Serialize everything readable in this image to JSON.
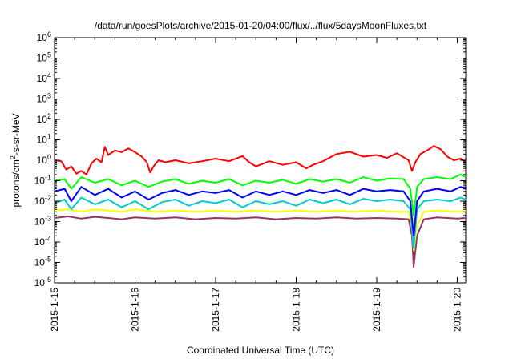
{
  "chart_data": {
    "type": "line",
    "title": "/data/run/goesPlots/archive/2015-01-20/04:00/flux/../flux/5daysMoonFluxes.txt",
    "xlabel": "Coordinated Universal Time (UTC)",
    "ylabel": "protons/cm2-s-sr-MeV",
    "ylabel_parts": {
      "pre": "protons/cm",
      "sup": "2",
      "post": "-s-sr-MeV"
    },
    "yscale": "log",
    "ylim": [
      1e-06,
      1000000.0
    ],
    "xlim": [
      "2015-01-15",
      "2015-01-20T02:30"
    ],
    "x_ticks": [
      "2015-1-15",
      "2015-1-16",
      "2015-1-17",
      "2015-1-18",
      "2015-1-19",
      "2015-1-20"
    ],
    "y_ticks": [
      {
        "base": "10",
        "exp": "-6"
      },
      {
        "base": "10",
        "exp": "-5"
      },
      {
        "base": "10",
        "exp": "-4"
      },
      {
        "base": "10",
        "exp": "-3"
      },
      {
        "base": "10",
        "exp": "-2"
      },
      {
        "base": "10",
        "exp": "-1"
      },
      {
        "base": "10",
        "exp": "0"
      },
      {
        "base": "10",
        "exp": "1"
      },
      {
        "base": "10",
        "exp": "2"
      },
      {
        "base": "10",
        "exp": "3"
      },
      {
        "base": "10",
        "exp": "4"
      },
      {
        "base": "10",
        "exp": "5"
      },
      {
        "base": "10",
        "exp": "6"
      }
    ],
    "grid": false,
    "series": [
      {
        "color": "#ff0000",
        "points": [
          [
            "2015-01-15T00:00",
            1.0
          ],
          [
            "2015-01-15T02:00",
            0.9
          ],
          [
            "2015-01-15T03:30",
            0.35
          ],
          [
            "2015-01-15T05:00",
            0.5
          ],
          [
            "2015-01-15T06:30",
            0.22
          ],
          [
            "2015-01-15T08:00",
            0.3
          ],
          [
            "2015-01-15T09:30",
            0.2
          ],
          [
            "2015-01-15T11:00",
            0.7
          ],
          [
            "2015-01-15T12:30",
            1.2
          ],
          [
            "2015-01-15T14:00",
            0.8
          ],
          [
            "2015-01-15T15:00",
            4.5
          ],
          [
            "2015-01-15T16:00",
            1.8
          ],
          [
            "2015-01-15T18:00",
            3.0
          ],
          [
            "2015-01-15T20:00",
            2.5
          ],
          [
            "2015-01-15T22:00",
            3.8
          ],
          [
            "2015-01-16T00:00",
            2.5
          ],
          [
            "2015-01-16T02:00",
            1.5
          ],
          [
            "2015-01-16T03:30",
            0.8
          ],
          [
            "2015-01-16T04:30",
            0.25
          ],
          [
            "2015-01-16T05:30",
            0.5
          ],
          [
            "2015-01-16T07:00",
            1.0
          ],
          [
            "2015-01-16T09:00",
            0.8
          ],
          [
            "2015-01-16T12:00",
            1.0
          ],
          [
            "2015-01-16T16:00",
            0.7
          ],
          [
            "2015-01-16T20:00",
            0.9
          ],
          [
            "2015-01-17T00:00",
            1.2
          ],
          [
            "2015-01-17T04:00",
            0.9
          ],
          [
            "2015-01-17T08:00",
            1.6
          ],
          [
            "2015-01-17T10:00",
            0.8
          ],
          [
            "2015-01-17T12:00",
            0.5
          ],
          [
            "2015-01-17T16:00",
            0.9
          ],
          [
            "2015-01-17T20:00",
            0.6
          ],
          [
            "2015-01-18T00:00",
            0.8
          ],
          [
            "2015-01-18T03:00",
            0.4
          ],
          [
            "2015-01-18T05:00",
            0.6
          ],
          [
            "2015-01-18T08:00",
            0.9
          ],
          [
            "2015-01-18T12:00",
            2.0
          ],
          [
            "2015-01-18T16:00",
            2.6
          ],
          [
            "2015-01-18T20:00",
            1.5
          ],
          [
            "2015-01-19T00:00",
            1.8
          ],
          [
            "2015-01-19T03:00",
            1.3
          ],
          [
            "2015-01-19T06:00",
            2.2
          ],
          [
            "2015-01-19T08:00",
            1.4
          ],
          [
            "2015-01-19T09:30",
            1.0
          ],
          [
            "2015-01-19T10:30",
            0.3
          ],
          [
            "2015-01-19T11:30",
            0.8
          ],
          [
            "2015-01-19T13:00",
            2.0
          ],
          [
            "2015-01-19T15:00",
            3.0
          ],
          [
            "2015-01-19T17:00",
            5.0
          ],
          [
            "2015-01-19T19:00",
            3.5
          ],
          [
            "2015-01-19T21:00",
            1.5
          ],
          [
            "2015-01-19T23:00",
            1.0
          ],
          [
            "2015-01-20T01:00",
            1.2
          ],
          [
            "2015-01-20T02:30",
            0.8
          ]
        ]
      },
      {
        "color": "#00ff00",
        "points": [
          [
            "2015-01-15T00:00",
            0.1
          ],
          [
            "2015-01-15T03:00",
            0.12
          ],
          [
            "2015-01-15T05:00",
            0.04
          ],
          [
            "2015-01-15T08:00",
            0.15
          ],
          [
            "2015-01-15T12:00",
            0.08
          ],
          [
            "2015-01-15T16:00",
            0.12
          ],
          [
            "2015-01-15T20:00",
            0.06
          ],
          [
            "2015-01-16T00:00",
            0.1
          ],
          [
            "2015-01-16T04:00",
            0.05
          ],
          [
            "2015-01-16T08:00",
            0.09
          ],
          [
            "2015-01-16T12:00",
            0.12
          ],
          [
            "2015-01-16T16:00",
            0.07
          ],
          [
            "2015-01-16T20:00",
            0.1
          ],
          [
            "2015-01-17T00:00",
            0.08
          ],
          [
            "2015-01-17T04:00",
            0.12
          ],
          [
            "2015-01-17T08:00",
            0.06
          ],
          [
            "2015-01-17T12:00",
            0.1
          ],
          [
            "2015-01-17T16:00",
            0.08
          ],
          [
            "2015-01-17T20:00",
            0.11
          ],
          [
            "2015-01-18T00:00",
            0.07
          ],
          [
            "2015-01-18T04:00",
            0.12
          ],
          [
            "2015-01-18T08:00",
            0.09
          ],
          [
            "2015-01-18T12:00",
            0.12
          ],
          [
            "2015-01-18T16:00",
            0.08
          ],
          [
            "2015-01-18T20:00",
            0.15
          ],
          [
            "2015-01-19T00:00",
            0.1
          ],
          [
            "2015-01-19T04:00",
            0.13
          ],
          [
            "2015-01-19T08:00",
            0.12
          ],
          [
            "2015-01-19T10:00",
            0.04
          ],
          [
            "2015-01-19T11:00",
            0.002
          ],
          [
            "2015-01-19T12:00",
            0.05
          ],
          [
            "2015-01-19T14:00",
            0.12
          ],
          [
            "2015-01-19T18:00",
            0.15
          ],
          [
            "2015-01-19T22:00",
            0.12
          ],
          [
            "2015-01-20T01:00",
            0.2
          ],
          [
            "2015-01-20T02:30",
            0.15
          ]
        ]
      },
      {
        "color": "#0000ff",
        "points": [
          [
            "2015-01-15T00:00",
            0.03
          ],
          [
            "2015-01-15T03:00",
            0.04
          ],
          [
            "2015-01-15T05:00",
            0.01
          ],
          [
            "2015-01-15T08:00",
            0.05
          ],
          [
            "2015-01-15T12:00",
            0.02
          ],
          [
            "2015-01-15T16:00",
            0.04
          ],
          [
            "2015-01-15T20:00",
            0.015
          ],
          [
            "2015-01-16T00:00",
            0.03
          ],
          [
            "2015-01-16T04:00",
            0.012
          ],
          [
            "2015-01-16T08:00",
            0.025
          ],
          [
            "2015-01-16T12:00",
            0.035
          ],
          [
            "2015-01-16T16:00",
            0.02
          ],
          [
            "2015-01-16T20:00",
            0.03
          ],
          [
            "2015-01-17T00:00",
            0.025
          ],
          [
            "2015-01-17T04:00",
            0.035
          ],
          [
            "2015-01-17T08:00",
            0.015
          ],
          [
            "2015-01-17T12:00",
            0.03
          ],
          [
            "2015-01-17T16:00",
            0.02
          ],
          [
            "2015-01-17T20:00",
            0.03
          ],
          [
            "2015-01-18T00:00",
            0.02
          ],
          [
            "2015-01-18T04:00",
            0.035
          ],
          [
            "2015-01-18T08:00",
            0.025
          ],
          [
            "2015-01-18T12:00",
            0.035
          ],
          [
            "2015-01-18T16:00",
            0.02
          ],
          [
            "2015-01-18T20:00",
            0.04
          ],
          [
            "2015-01-19T00:00",
            0.03
          ],
          [
            "2015-01-19T04:00",
            0.035
          ],
          [
            "2015-01-19T08:00",
            0.03
          ],
          [
            "2015-01-19T10:00",
            0.01
          ],
          [
            "2015-01-19T11:00",
            0.0002
          ],
          [
            "2015-01-19T12:00",
            0.01
          ],
          [
            "2015-01-19T14:00",
            0.03
          ],
          [
            "2015-01-19T18:00",
            0.04
          ],
          [
            "2015-01-19T22:00",
            0.03
          ],
          [
            "2015-01-20T01:00",
            0.05
          ],
          [
            "2015-01-20T02:30",
            0.04
          ]
        ]
      },
      {
        "color": "#00cccc",
        "points": [
          [
            "2015-01-15T00:00",
            0.008
          ],
          [
            "2015-01-15T03:00",
            0.012
          ],
          [
            "2015-01-15T05:00",
            0.004
          ],
          [
            "2015-01-15T08:00",
            0.015
          ],
          [
            "2015-01-15T12:00",
            0.007
          ],
          [
            "2015-01-15T16:00",
            0.012
          ],
          [
            "2015-01-15T20:00",
            0.005
          ],
          [
            "2015-01-16T00:00",
            0.01
          ],
          [
            "2015-01-16T04:00",
            0.004
          ],
          [
            "2015-01-16T08:00",
            0.009
          ],
          [
            "2015-01-16T12:00",
            0.012
          ],
          [
            "2015-01-16T16:00",
            0.006
          ],
          [
            "2015-01-16T20:00",
            0.01
          ],
          [
            "2015-01-17T00:00",
            0.008
          ],
          [
            "2015-01-17T04:00",
            0.012
          ],
          [
            "2015-01-17T08:00",
            0.005
          ],
          [
            "2015-01-17T12:00",
            0.01
          ],
          [
            "2015-01-17T16:00",
            0.007
          ],
          [
            "2015-01-17T20:00",
            0.01
          ],
          [
            "2015-01-18T00:00",
            0.006
          ],
          [
            "2015-01-18T04:00",
            0.012
          ],
          [
            "2015-01-18T08:00",
            0.008
          ],
          [
            "2015-01-18T12:00",
            0.012
          ],
          [
            "2015-01-18T16:00",
            0.007
          ],
          [
            "2015-01-18T20:00",
            0.013
          ],
          [
            "2015-01-19T00:00",
            0.01
          ],
          [
            "2015-01-19T04:00",
            0.012
          ],
          [
            "2015-01-19T08:00",
            0.01
          ],
          [
            "2015-01-19T10:00",
            0.004
          ],
          [
            "2015-01-19T11:00",
            5e-05
          ],
          [
            "2015-01-19T12:00",
            0.004
          ],
          [
            "2015-01-19T14:00",
            0.01
          ],
          [
            "2015-01-19T18:00",
            0.012
          ],
          [
            "2015-01-19T22:00",
            0.01
          ],
          [
            "2015-01-20T01:00",
            0.015
          ],
          [
            "2015-01-20T02:30",
            0.012
          ]
        ]
      },
      {
        "color": "#ffff00",
        "points": [
          [
            "2015-01-15T00:00",
            0.0035
          ],
          [
            "2015-01-15T04:00",
            0.004
          ],
          [
            "2015-01-15T08:00",
            0.003
          ],
          [
            "2015-01-15T12:00",
            0.004
          ],
          [
            "2015-01-15T16:00",
            0.0035
          ],
          [
            "2015-01-15T20:00",
            0.003
          ],
          [
            "2015-01-16T00:00",
            0.004
          ],
          [
            "2015-01-16T06:00",
            0.003
          ],
          [
            "2015-01-16T12:00",
            0.0035
          ],
          [
            "2015-01-16T18:00",
            0.003
          ],
          [
            "2015-01-17T00:00",
            0.0035
          ],
          [
            "2015-01-17T06:00",
            0.003
          ],
          [
            "2015-01-17T12:00",
            0.0035
          ],
          [
            "2015-01-17T18:00",
            0.003
          ],
          [
            "2015-01-18T00:00",
            0.0035
          ],
          [
            "2015-01-18T06:00",
            0.003
          ],
          [
            "2015-01-18T12:00",
            0.0035
          ],
          [
            "2015-01-18T18:00",
            0.003
          ],
          [
            "2015-01-19T00:00",
            0.0035
          ],
          [
            "2015-01-19T06:00",
            0.003
          ],
          [
            "2015-01-19T09:30",
            0.003
          ],
          [
            "2015-01-19T10:30",
            0.0005
          ],
          [
            "2015-01-19T11:00",
            4e-05
          ],
          [
            "2015-01-19T12:00",
            0.0006
          ],
          [
            "2015-01-19T14:00",
            0.003
          ],
          [
            "2015-01-19T18:00",
            0.0035
          ],
          [
            "2015-01-20T00:00",
            0.003
          ],
          [
            "2015-01-20T02:30",
            0.0035
          ]
        ]
      },
      {
        "color": "#993366",
        "points": [
          [
            "2015-01-15T00:00",
            0.0015
          ],
          [
            "2015-01-15T04:00",
            0.0018
          ],
          [
            "2015-01-15T08:00",
            0.0014
          ],
          [
            "2015-01-15T12:00",
            0.0017
          ],
          [
            "2015-01-15T16:00",
            0.0015
          ],
          [
            "2015-01-15T20:00",
            0.0013
          ],
          [
            "2015-01-16T00:00",
            0.0016
          ],
          [
            "2015-01-16T06:00",
            0.0014
          ],
          [
            "2015-01-16T12:00",
            0.0016
          ],
          [
            "2015-01-16T18:00",
            0.0013
          ],
          [
            "2015-01-17T00:00",
            0.0015
          ],
          [
            "2015-01-17T06:00",
            0.0014
          ],
          [
            "2015-01-17T12:00",
            0.0016
          ],
          [
            "2015-01-17T18:00",
            0.0013
          ],
          [
            "2015-01-18T00:00",
            0.0015
          ],
          [
            "2015-01-18T06:00",
            0.0014
          ],
          [
            "2015-01-18T12:00",
            0.0016
          ],
          [
            "2015-01-18T18:00",
            0.0014
          ],
          [
            "2015-01-19T00:00",
            0.0015
          ],
          [
            "2015-01-19T06:00",
            0.0014
          ],
          [
            "2015-01-19T09:30",
            0.0013
          ],
          [
            "2015-01-19T10:30",
            0.0002
          ],
          [
            "2015-01-19T11:00",
            6e-06
          ],
          [
            "2015-01-19T12:00",
            0.0002
          ],
          [
            "2015-01-19T14:00",
            0.0013
          ],
          [
            "2015-01-19T18:00",
            0.0016
          ],
          [
            "2015-01-20T00:00",
            0.0014
          ],
          [
            "2015-01-20T02:30",
            0.0015
          ]
        ]
      }
    ]
  }
}
